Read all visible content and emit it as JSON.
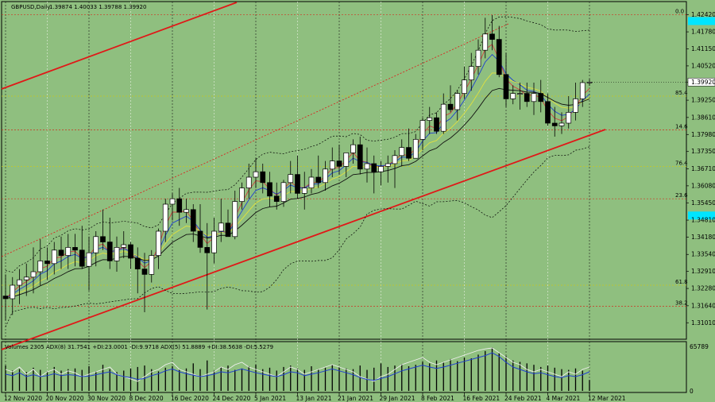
{
  "chart_data": {
    "type": "candlestick",
    "header": {
      "symbol": "GBPUSD,Daily",
      "ohlc": "1.39874 1.40033 1.39788 1.39920"
    },
    "price_axis": {
      "ylim": [
        1.304,
        1.429
      ],
      "ticks": [
        "1.42420",
        "1.41780",
        "1.41150",
        "1.40520",
        "1.39920",
        "1.39250",
        "1.38610",
        "1.37980",
        "1.37350",
        "1.36710",
        "1.36080",
        "1.35450",
        "1.34810",
        "1.34180",
        "1.33540",
        "1.32910",
        "1.32280",
        "1.31640",
        "1.31010"
      ],
      "tick_values": [
        1.4242,
        1.4178,
        1.4115,
        1.4052,
        1.3992,
        1.3925,
        1.3861,
        1.3798,
        1.3735,
        1.3671,
        1.3608,
        1.3545,
        1.3481,
        1.3418,
        1.3354,
        1.3291,
        1.3228,
        1.3164,
        1.3101
      ],
      "current_price": "1.39920",
      "cyan_marks": [
        1.4218,
        1.3498
      ]
    },
    "time_axis": {
      "labels": [
        "12 Nov 2020",
        "20 Nov 2020",
        "30 Nov 2020",
        "8 Dec 2020",
        "16 Dec 2020",
        "24 Dec 2020",
        "5 Jan 2021",
        "13 Jan 2021",
        "21 Jan 2021",
        "29 Jan 2021",
        "8 Feb 2021",
        "16 Feb 2021",
        "24 Feb 2021",
        "4 Mar 2021",
        "12 Mar 2021"
      ],
      "label_bars": [
        0,
        6,
        12,
        18,
        24,
        30,
        36,
        42,
        48,
        54,
        60,
        66,
        72,
        78,
        84
      ]
    },
    "fib_levels": [
      {
        "label": "0.0",
        "price": 1.4242,
        "color": "#d03020"
      },
      {
        "label": "85.4",
        "price": 1.394,
        "color": "#c8c820"
      },
      {
        "label": "14.6",
        "price": 1.3815,
        "color": "#d03020"
      },
      {
        "label": "76.4",
        "price": 1.368,
        "color": "#c8c820"
      },
      {
        "label": "23.6",
        "price": 1.356,
        "color": "#d03020"
      },
      {
        "label": "61.8",
        "price": 1.324,
        "color": "#c8c820"
      },
      {
        "label": "38.2",
        "price": 1.3162,
        "color": "#d03020"
      }
    ],
    "ohlc": {
      "open": [
        1.32,
        1.319,
        1.324,
        1.326,
        1.327,
        1.329,
        1.333,
        1.332,
        1.337,
        1.335,
        1.338,
        1.337,
        1.331,
        1.336,
        1.342,
        1.34,
        1.333,
        1.338,
        1.339,
        1.334,
        1.33,
        1.328,
        1.335,
        1.344,
        1.354,
        1.356,
        1.351,
        1.352,
        1.344,
        1.338,
        1.336,
        1.344,
        1.347,
        1.342,
        1.355,
        1.36,
        1.364,
        1.366,
        1.362,
        1.357,
        1.355,
        1.362,
        1.365,
        1.358,
        1.36,
        1.364,
        1.362,
        1.367,
        1.37,
        1.368,
        1.373,
        1.376,
        1.367,
        1.369,
        1.366,
        1.368,
        1.369,
        1.372,
        1.375,
        1.371,
        1.378,
        1.385,
        1.386,
        1.381,
        1.391,
        1.389,
        1.395,
        1.4,
        1.405,
        1.411,
        1.417,
        1.415,
        1.402,
        1.393,
        1.395,
        1.395,
        1.392,
        1.395,
        1.392,
        1.384,
        1.383,
        1.384,
        1.388,
        1.393,
        1.399
      ],
      "high": [
        1.328,
        1.327,
        1.33,
        1.332,
        1.338,
        1.341,
        1.338,
        1.34,
        1.342,
        1.343,
        1.343,
        1.346,
        1.342,
        1.344,
        1.352,
        1.349,
        1.342,
        1.344,
        1.34,
        1.338,
        1.336,
        1.337,
        1.345,
        1.356,
        1.358,
        1.36,
        1.356,
        1.354,
        1.354,
        1.347,
        1.349,
        1.356,
        1.352,
        1.359,
        1.362,
        1.369,
        1.371,
        1.369,
        1.366,
        1.362,
        1.363,
        1.37,
        1.372,
        1.366,
        1.367,
        1.372,
        1.37,
        1.375,
        1.376,
        1.373,
        1.378,
        1.379,
        1.375,
        1.372,
        1.37,
        1.372,
        1.374,
        1.378,
        1.382,
        1.38,
        1.386,
        1.39,
        1.388,
        1.395,
        1.398,
        1.396,
        1.405,
        1.41,
        1.415,
        1.423,
        1.424,
        1.42,
        1.41,
        1.398,
        1.399,
        1.399,
        1.399,
        1.4,
        1.395,
        1.39,
        1.388,
        1.394,
        1.399,
        1.4,
        1.4003
      ],
      "low": [
        1.311,
        1.313,
        1.317,
        1.32,
        1.321,
        1.324,
        1.326,
        1.328,
        1.33,
        1.33,
        1.331,
        1.33,
        1.322,
        1.331,
        1.337,
        1.33,
        1.329,
        1.334,
        1.33,
        1.321,
        1.314,
        1.325,
        1.33,
        1.34,
        1.348,
        1.346,
        1.347,
        1.34,
        1.336,
        1.315,
        1.332,
        1.34,
        1.342,
        1.341,
        1.352,
        1.356,
        1.36,
        1.358,
        1.353,
        1.352,
        1.353,
        1.358,
        1.356,
        1.352,
        1.358,
        1.36,
        1.359,
        1.364,
        1.365,
        1.364,
        1.369,
        1.365,
        1.362,
        1.358,
        1.361,
        1.362,
        1.36,
        1.368,
        1.37,
        1.371,
        1.374,
        1.38,
        1.38,
        1.38,
        1.388,
        1.385,
        1.393,
        1.396,
        1.402,
        1.408,
        1.411,
        1.401,
        1.39,
        1.391,
        1.389,
        1.39,
        1.387,
        1.388,
        1.383,
        1.379,
        1.38,
        1.382,
        1.385,
        1.39,
        1.3979
      ],
      "close": [
        1.319,
        1.324,
        1.326,
        1.327,
        1.329,
        1.333,
        1.332,
        1.337,
        1.335,
        1.338,
        1.337,
        1.331,
        1.336,
        1.342,
        1.34,
        1.333,
        1.338,
        1.339,
        1.334,
        1.33,
        1.328,
        1.335,
        1.344,
        1.354,
        1.356,
        1.351,
        1.352,
        1.344,
        1.338,
        1.336,
        1.344,
        1.347,
        1.342,
        1.355,
        1.36,
        1.364,
        1.366,
        1.362,
        1.357,
        1.355,
        1.362,
        1.365,
        1.358,
        1.36,
        1.364,
        1.362,
        1.367,
        1.37,
        1.368,
        1.373,
        1.376,
        1.367,
        1.369,
        1.366,
        1.368,
        1.369,
        1.372,
        1.375,
        1.371,
        1.378,
        1.385,
        1.386,
        1.381,
        1.391,
        1.389,
        1.395,
        1.4,
        1.405,
        1.411,
        1.417,
        1.415,
        1.402,
        1.393,
        1.395,
        1.395,
        1.392,
        1.395,
        1.392,
        1.384,
        1.383,
        1.384,
        1.388,
        1.393,
        1.399,
        1.3992
      ]
    },
    "volume_panel": {
      "header": "Volumes 2305  ADX(8) 31.7541 +DI:23.0001 -DI:9.9718  ADX(5) 51.8889 +DI:38.5638 -DI:5.5279",
      "axis_top": "65789",
      "axis_bottom": "0",
      "volumes": [
        35000,
        28000,
        30000,
        26000,
        32000,
        29000,
        27000,
        33000,
        28000,
        30000,
        31000,
        29000,
        34000,
        27000,
        36000,
        30000,
        26000,
        28000,
        31000,
        33000,
        35000,
        30000,
        27000,
        32000,
        34000,
        29000,
        31000,
        38000,
        30000,
        42000,
        28000,
        33000,
        35000,
        29000,
        31000,
        34000,
        36000,
        30000,
        32000,
        28000,
        33000,
        35000,
        31000,
        29000,
        34000,
        30000,
        32000,
        36000,
        33000,
        31000,
        30000,
        35000,
        29000,
        32000,
        38000,
        33000,
        35000,
        37000,
        34000,
        36000,
        40000,
        38000,
        42000,
        39000,
        44000,
        41000,
        46000,
        45000,
        50000,
        55000,
        60000,
        52000,
        48000,
        42000,
        40000,
        38000,
        36000,
        33000,
        35000,
        32000,
        30000,
        29000,
        31000,
        28000,
        15000
      ],
      "adx_line": [
        0.45,
        0.4,
        0.5,
        0.35,
        0.45,
        0.3,
        0.4,
        0.45,
        0.35,
        0.42,
        0.38,
        0.3,
        0.35,
        0.4,
        0.45,
        0.5,
        0.35,
        0.3,
        0.25,
        0.2,
        0.3,
        0.4,
        0.45,
        0.55,
        0.6,
        0.45,
        0.4,
        0.35,
        0.3,
        0.35,
        0.4,
        0.5,
        0.45,
        0.55,
        0.6,
        0.5,
        0.45,
        0.4,
        0.35,
        0.3,
        0.4,
        0.5,
        0.45,
        0.35,
        0.4,
        0.45,
        0.5,
        0.55,
        0.5,
        0.45,
        0.4,
        0.3,
        0.25,
        0.2,
        0.3,
        0.35,
        0.45,
        0.55,
        0.6,
        0.65,
        0.7,
        0.6,
        0.55,
        0.6,
        0.65,
        0.7,
        0.75,
        0.8,
        0.85,
        0.88,
        0.9,
        0.8,
        0.7,
        0.6,
        0.55,
        0.45,
        0.4,
        0.45,
        0.4,
        0.35,
        0.3,
        0.4,
        0.35,
        0.45,
        0.5
      ],
      "di_line": [
        0.35,
        0.32,
        0.38,
        0.3,
        0.34,
        0.3,
        0.32,
        0.36,
        0.32,
        0.34,
        0.33,
        0.3,
        0.31,
        0.34,
        0.37,
        0.4,
        0.34,
        0.3,
        0.28,
        0.24,
        0.26,
        0.32,
        0.36,
        0.42,
        0.46,
        0.4,
        0.36,
        0.33,
        0.3,
        0.32,
        0.35,
        0.4,
        0.38,
        0.42,
        0.46,
        0.42,
        0.38,
        0.35,
        0.32,
        0.3,
        0.34,
        0.4,
        0.38,
        0.32,
        0.35,
        0.38,
        0.42,
        0.46,
        0.42,
        0.38,
        0.34,
        0.28,
        0.24,
        0.22,
        0.26,
        0.3,
        0.36,
        0.42,
        0.46,
        0.5,
        0.54,
        0.5,
        0.47,
        0.5,
        0.54,
        0.58,
        0.62,
        0.66,
        0.7,
        0.74,
        0.8,
        0.72,
        0.6,
        0.5,
        0.45,
        0.4,
        0.36,
        0.38,
        0.34,
        0.3,
        0.28,
        0.32,
        0.3,
        0.34,
        0.4
      ]
    }
  },
  "colors": {
    "background": "#8fbf7f",
    "bull_candle": "#ffffff",
    "bear_candle": "#000000",
    "channel": "#e01818",
    "ema_blue": "#2040d0",
    "ema_red": "#d04040",
    "ema_yellow": "#e0e040",
    "ema_black": "#101010",
    "price_tag": "#00e5ff"
  }
}
